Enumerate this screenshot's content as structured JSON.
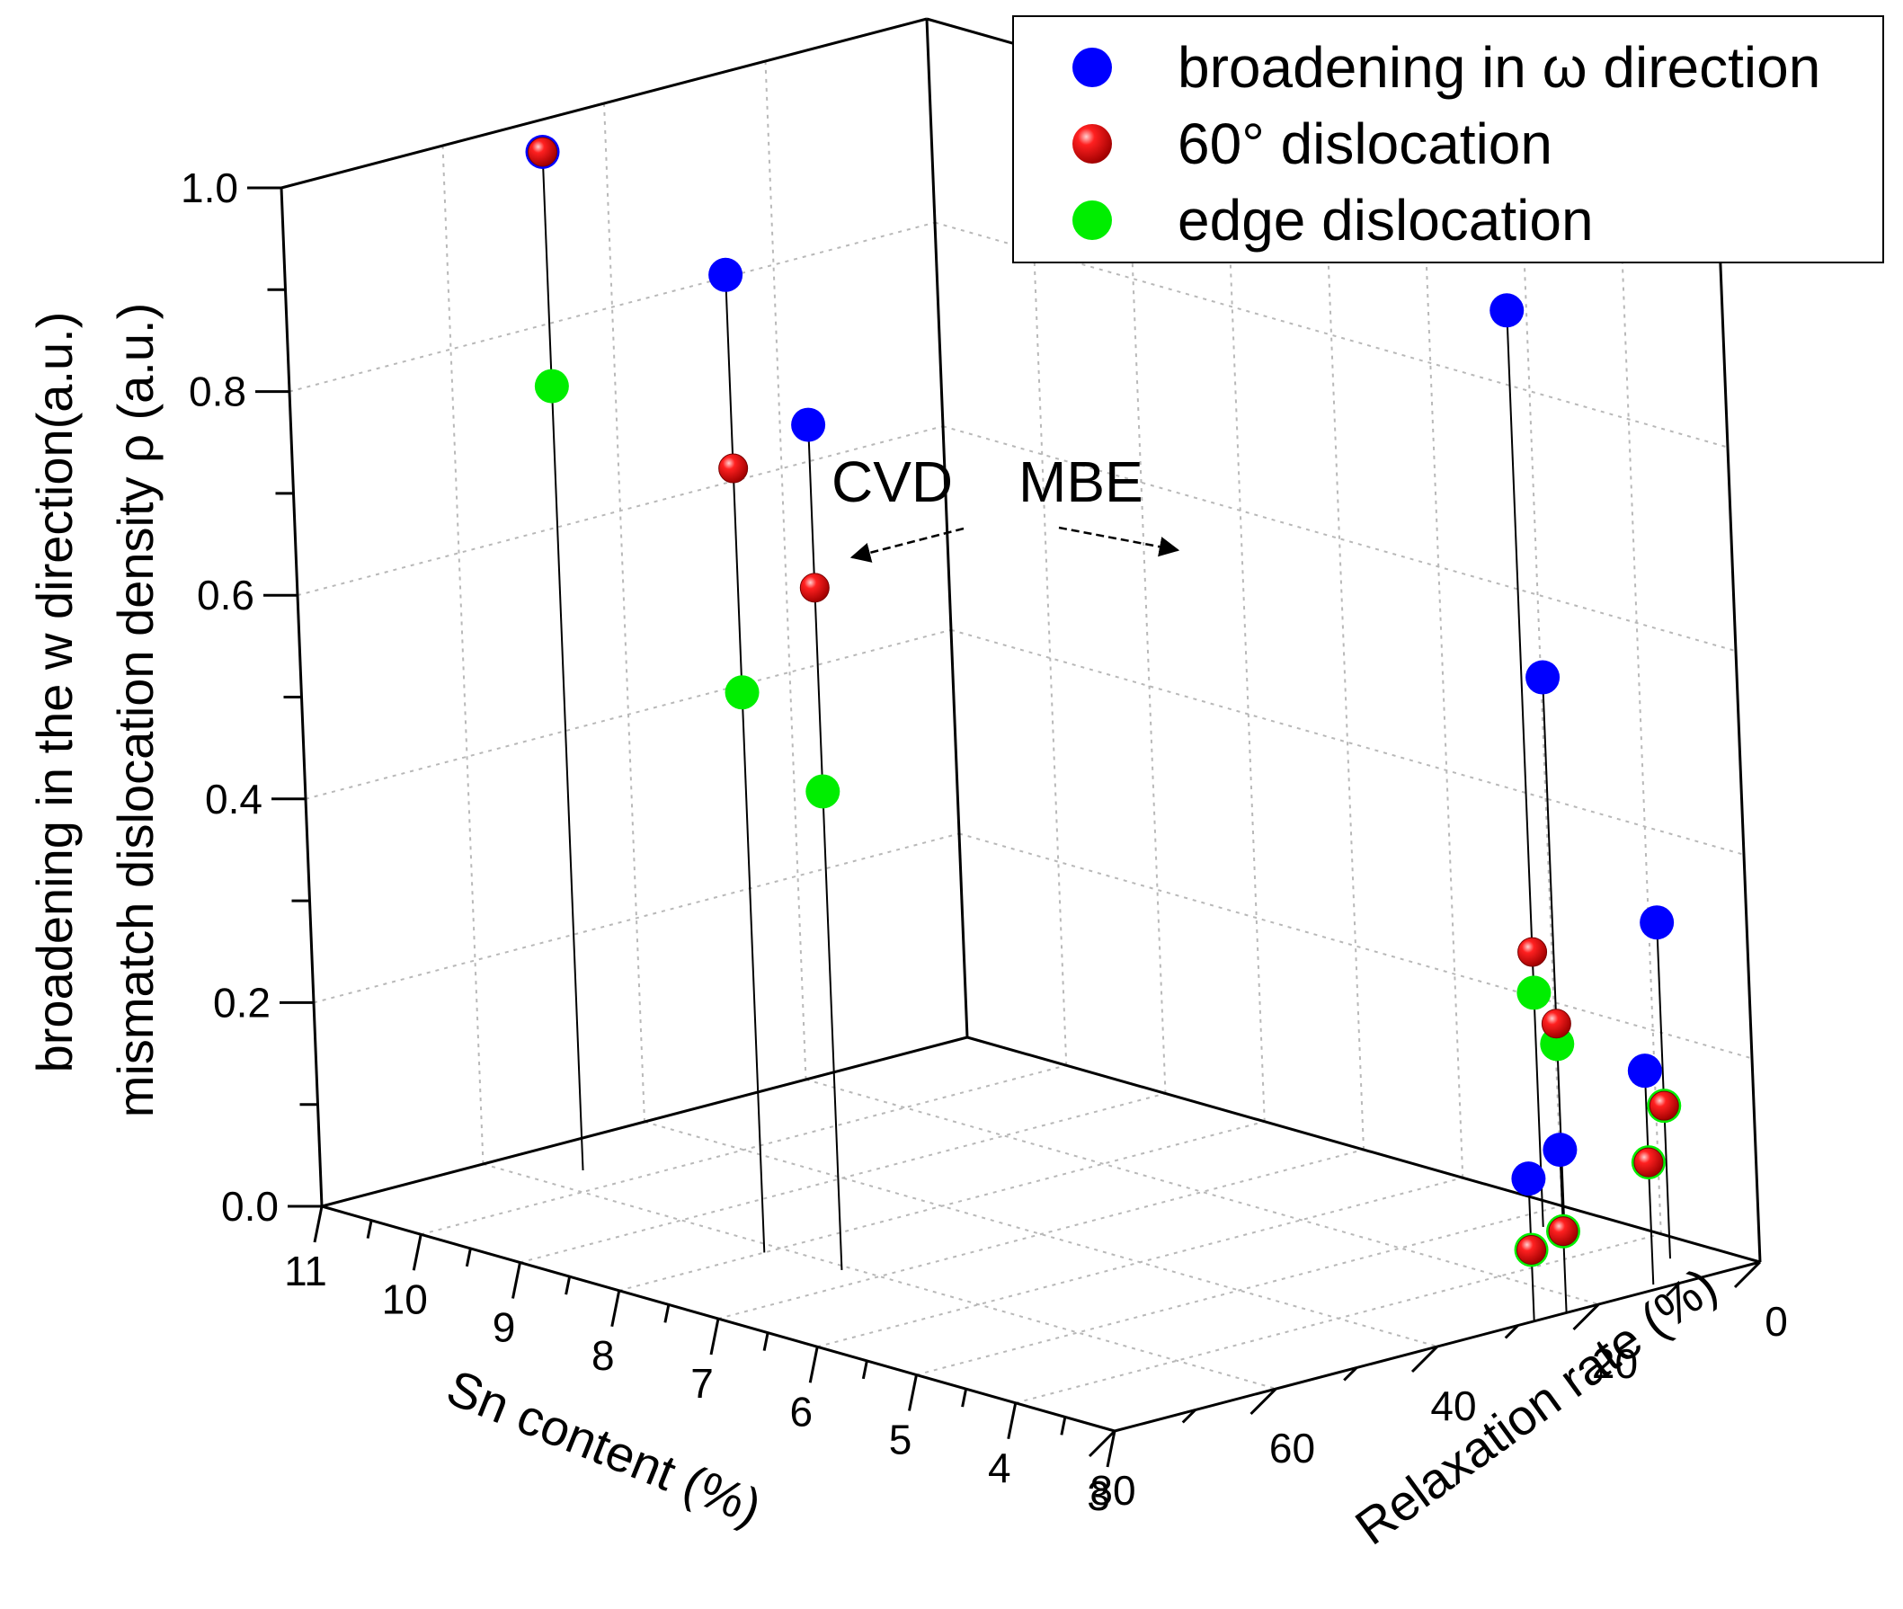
{
  "chart_data": {
    "type": "scatter",
    "projection": "3d",
    "zlabel_lines": [
      "broadening in the w direction(a.u.)",
      "mismatch dislocation density ρ (a.u.)"
    ],
    "xlabel": "Sn content (%)",
    "ylabel": "Relaxation rate (%)",
    "z_ticks": [
      "0.0",
      "0.2",
      "0.4",
      "0.6",
      "0.8",
      "1.0"
    ],
    "x_ticks": [
      "11",
      "10",
      "9",
      "8",
      "7",
      "6",
      "5",
      "4",
      "3"
    ],
    "y_ticks": [
      "0",
      "20",
      "40",
      "60",
      "80"
    ],
    "zlim": [
      0,
      1
    ],
    "xlim": [
      3,
      11
    ],
    "ylim": [
      0,
      80
    ],
    "grid": true,
    "legend_placement": "top-right",
    "series": [
      {
        "name": "broadening in ω direction",
        "color": "#0000ff",
        "style": "ball"
      },
      {
        "name": "60° dislocation",
        "color": "#e00000",
        "style": "glossy-ball"
      },
      {
        "name": "edge dislocation",
        "color": "#00ee00",
        "style": "ball"
      }
    ],
    "samples": [
      {
        "group": "CVD",
        "sn": 10.4,
        "relax": 55,
        "broadening": 1.0,
        "dislocation_60": 1.0,
        "edge": 0.77
      },
      {
        "group": "CVD",
        "sn": 8.0,
        "relax": 62,
        "broadening": 0.96,
        "dislocation_60": 0.77,
        "edge": 0.55
      },
      {
        "group": "CVD",
        "sn": 7.3,
        "relax": 61,
        "broadening": 0.83,
        "dislocation_60": 0.67,
        "edge": 0.47
      },
      {
        "group": "MBE",
        "sn": 4.7,
        "relax": 6,
        "broadening": 0.9,
        "dislocation_60": 0.27,
        "edge": 0.23
      },
      {
        "group": "MBE",
        "sn": 4.4,
        "relax": 7,
        "broadening": 0.55,
        "dislocation_60": 0.21,
        "edge": 0.19
      },
      {
        "group": "MBE",
        "sn": 3.5,
        "relax": 5,
        "broadening": 0.33,
        "dislocation_60": 0.15,
        "edge": 0.15
      },
      {
        "group": "MBE",
        "sn": 3.1,
        "relax": 12,
        "broadening": 0.21,
        "dislocation_60": 0.12,
        "edge": 0.12
      },
      {
        "group": "MBE",
        "sn": 3.0,
        "relax": 24,
        "broadening": 0.16,
        "dislocation_60": 0.08,
        "edge": 0.08
      },
      {
        "group": "MBE",
        "sn": 3.0,
        "relax": 28,
        "broadening": 0.14,
        "dislocation_60": 0.07,
        "edge": 0.07
      }
    ],
    "annotations": [
      {
        "text": "CVD",
        "arrow": "left"
      },
      {
        "text": "MBE",
        "arrow": "right"
      }
    ]
  }
}
